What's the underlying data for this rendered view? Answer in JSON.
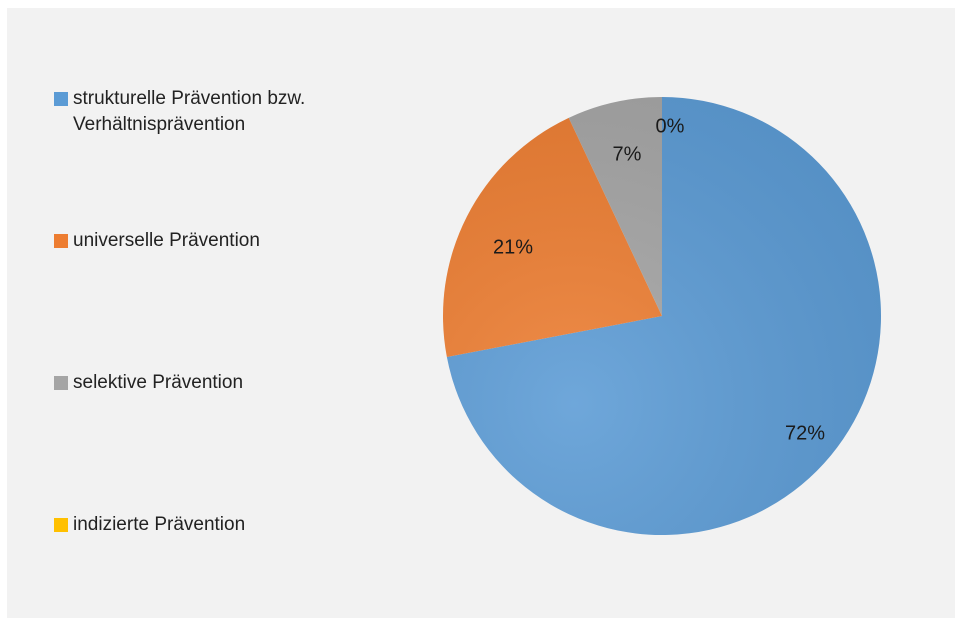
{
  "chart_data": {
    "type": "pie",
    "categories": [
      "strukturelle Prävention bzw. Verhältnisprävention",
      "universelle Prävention",
      "selektive Prävention",
      "indizierte Prävention"
    ],
    "values": [
      72,
      21,
      7,
      0
    ],
    "data_labels": [
      "72%",
      "21%",
      "7%",
      "0%"
    ],
    "colors": [
      "#5b9bd5",
      "#ed7d31",
      "#a5a5a5",
      "#ffc000"
    ],
    "start_angle_deg": 0,
    "direction": "clockwise",
    "legend_position": "left"
  }
}
